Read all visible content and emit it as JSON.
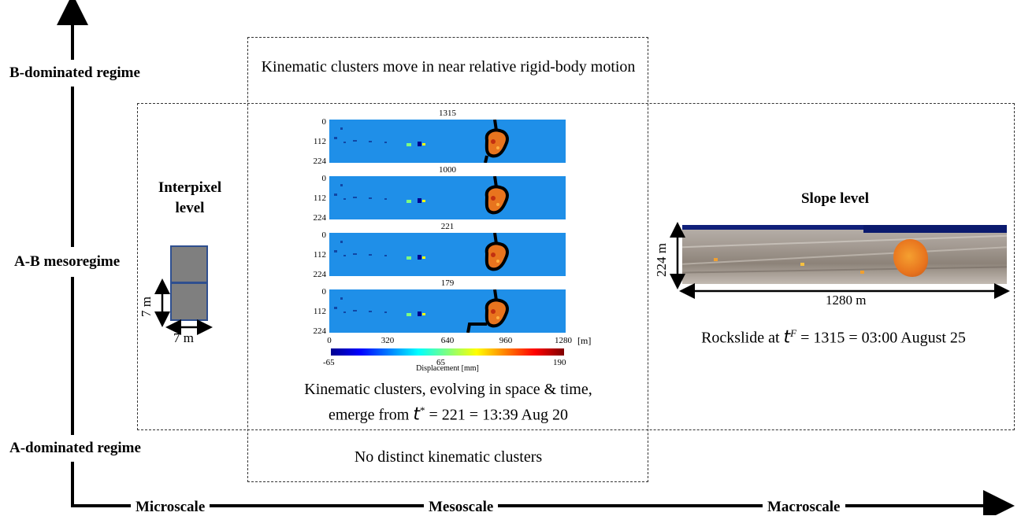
{
  "regimes": {
    "b_dominated": "B-dominated regime",
    "ab_meso": "A-B mesoregime",
    "a_dominated": "A-dominated regime"
  },
  "scales": {
    "micro": "Microscale",
    "meso": "Mesoscale",
    "macro": "Macroscale"
  },
  "meso_box": {
    "top_caption": "Kinematic clusters move in near relative rigid-body motion",
    "bottom_caption": "No distinct kinematic clusters"
  },
  "interpixel": {
    "title_line1": "Interpixel",
    "title_line2": "level",
    "dim_vertical": "7 m",
    "dim_horizontal": "7 m"
  },
  "panels": {
    "titles": [
      "1315",
      "1000",
      "221",
      "179"
    ],
    "y_ticks": [
      "0",
      "112",
      "224"
    ],
    "x_ticks": [
      "0",
      "320",
      "640",
      "960",
      "1280"
    ],
    "x_unit": "[m]",
    "colorbar_min": "-65",
    "colorbar_mid": "65",
    "colorbar_max": "190",
    "colorbar_label": "Displacement [mm]",
    "caption_line1": "Kinematic clusters, evolving in space & time,",
    "caption_line2_prefix": "emerge from ",
    "caption_tvar": "t",
    "caption_tsup": "*",
    "caption_line2_suffix": " = 221 = 13:39 Aug 20"
  },
  "slope": {
    "title": "Slope level",
    "dim_vertical": "224 m",
    "dim_horizontal": "1280 m",
    "caption_prefix": "Rockslide at ",
    "caption_tvar": "t",
    "caption_tsup": "F",
    "caption_suffix": " = 1315 = 03:00 August 25"
  },
  "colors": {
    "field_blue": "#1f8fe8",
    "cluster_orange": "#e8741e",
    "cell_gray": "#7f7f7f",
    "cell_border": "#2f4f8f"
  }
}
